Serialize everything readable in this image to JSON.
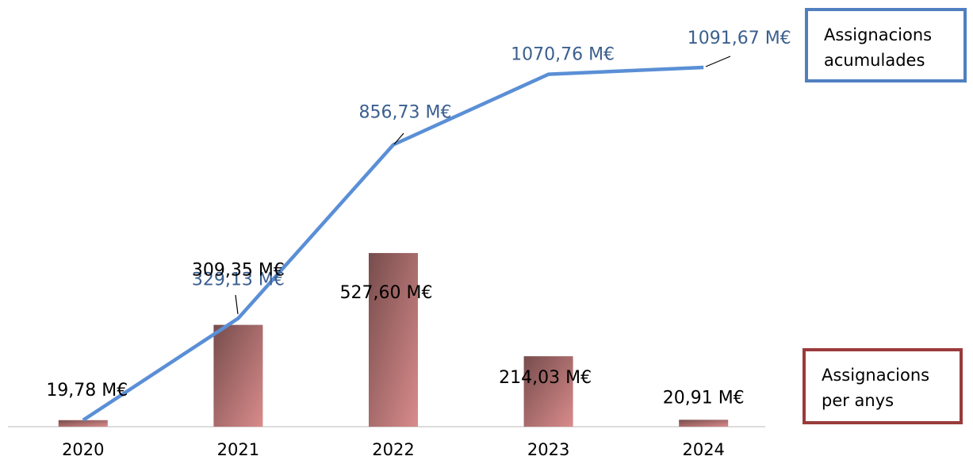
{
  "chart_data": {
    "type": "bar+line",
    "categories": [
      "2020",
      "2021",
      "2022",
      "2023",
      "2024"
    ],
    "series": [
      {
        "name": "Assignacions per anys",
        "type": "bar",
        "color": "#d98b8b",
        "values": [
          19.78,
          309.35,
          527.6,
          214.03,
          20.91
        ],
        "value_labels": [
          "19,78 M€",
          "309,35 M€",
          "527,60 M€",
          "214,03 M€",
          "20,91 M€"
        ]
      },
      {
        "name": "Assignacions acumulades",
        "type": "line",
        "color": "#5a8fd6",
        "values": [
          19.78,
          329.13,
          856.73,
          1070.76,
          1091.67
        ],
        "value_labels": [
          null,
          "329,13 M€",
          "856,73 M€",
          "1070,76 M€",
          "1091,67 M€"
        ]
      }
    ]
  }
}
